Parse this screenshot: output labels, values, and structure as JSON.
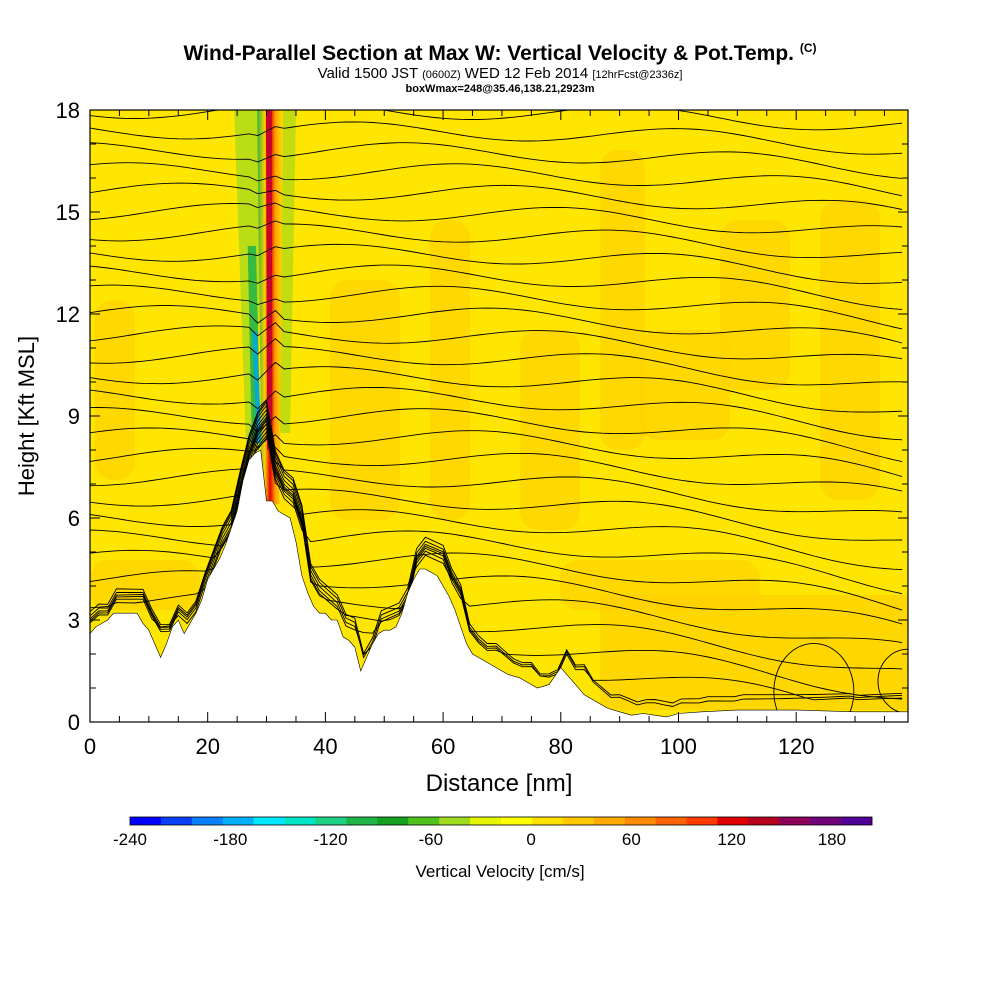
{
  "header": {
    "title": "Wind-Parallel Section at Max W: Vertical Velocity & Pot.Temp.",
    "copyright": "(C)",
    "valid_prefix": "Valid 1500 JST",
    "valid_z": "(0600Z)",
    "valid_date": "WED 12 Feb 2014",
    "forecast": "[12hrFcst@2336z]",
    "box_info": "boxWmax=248@35.46,138.21,2923m"
  },
  "colorbar": {
    "label": "Vertical Velocity [cm/s]",
    "ticks": [
      "-240",
      "-180",
      "-120",
      "-60",
      "0",
      "60",
      "120",
      "180"
    ],
    "colors": [
      "#0000ff",
      "#0a3ff5",
      "#0a80ff",
      "#00b0ff",
      "#00e8ff",
      "#00e6c4",
      "#1ed184",
      "#1eb446",
      "#16a020",
      "#50c21e",
      "#a0dc1e",
      "#e6f500",
      "#ffff00",
      "#ffe100",
      "#ffc800",
      "#ffaa00",
      "#ff8c00",
      "#ff6400",
      "#ff3c00",
      "#e10000",
      "#b4001e",
      "#8c005a",
      "#6e0078",
      "#500096"
    ]
  },
  "chart_data": {
    "type": "heatmap",
    "xlabel": "Distance [nm]",
    "ylabel": "Height [Kft MSL]",
    "xlim": [
      0,
      139
    ],
    "ylim": [
      0,
      18
    ],
    "xticks": [
      0,
      20,
      40,
      60,
      80,
      100,
      120
    ],
    "yticks": [
      0,
      3,
      6,
      9,
      12,
      15,
      18
    ],
    "terrain": [
      [
        0,
        2.6
      ],
      [
        1,
        2.8
      ],
      [
        3,
        3.0
      ],
      [
        4,
        3.2
      ],
      [
        8,
        3.2
      ],
      [
        9,
        2.9
      ],
      [
        10,
        2.7
      ],
      [
        11,
        2.3
      ],
      [
        12,
        1.9
      ],
      [
        13,
        2.3
      ],
      [
        14,
        2.8
      ],
      [
        15,
        3.0
      ],
      [
        16,
        2.6
      ],
      [
        17,
        2.9
      ],
      [
        18,
        3.2
      ],
      [
        19,
        3.6
      ],
      [
        20,
        4.2
      ],
      [
        21,
        4.5
      ],
      [
        22,
        4.8
      ],
      [
        23,
        5.2
      ],
      [
        24,
        5.7
      ],
      [
        25,
        6.2
      ],
      [
        26,
        7.1
      ],
      [
        27,
        7.7
      ],
      [
        28,
        7.9
      ],
      [
        29,
        8.0
      ],
      [
        30,
        6.5
      ],
      [
        31,
        6.5
      ],
      [
        32,
        6.2
      ],
      [
        34,
        6.0
      ],
      [
        35,
        5.3
      ],
      [
        36,
        4.3
      ],
      [
        37,
        3.8
      ],
      [
        38,
        3.4
      ],
      [
        39,
        3.2
      ],
      [
        40,
        3.2
      ],
      [
        41,
        3.0
      ],
      [
        42,
        3.0
      ],
      [
        43,
        2.5
      ],
      [
        44,
        2.4
      ],
      [
        45,
        2.2
      ],
      [
        46,
        1.5
      ],
      [
        47,
        1.9
      ],
      [
        48,
        2.3
      ],
      [
        49,
        2.6
      ],
      [
        50,
        2.7
      ],
      [
        51,
        2.7
      ],
      [
        52,
        2.8
      ],
      [
        53,
        3.2
      ],
      [
        54,
        3.8
      ],
      [
        55,
        4.2
      ],
      [
        56,
        4.5
      ],
      [
        57,
        4.5
      ],
      [
        58,
        4.4
      ],
      [
        59,
        4.3
      ],
      [
        60,
        4.0
      ],
      [
        61,
        3.7
      ],
      [
        62,
        3.3
      ],
      [
        63,
        2.8
      ],
      [
        64,
        2.3
      ],
      [
        65,
        2.0
      ],
      [
        67,
        1.8
      ],
      [
        69,
        1.6
      ],
      [
        71,
        1.4
      ],
      [
        73,
        1.3
      ],
      [
        75,
        1.1
      ],
      [
        76,
        1.0
      ],
      [
        78,
        1.1
      ],
      [
        80,
        1.6
      ],
      [
        82,
        1.2
      ],
      [
        84,
        0.8
      ],
      [
        86,
        0.6
      ],
      [
        88,
        0.4
      ],
      [
        90,
        0.3
      ],
      [
        92,
        0.2
      ],
      [
        94,
        0.25
      ],
      [
        96,
        0.2
      ],
      [
        98,
        0.15
      ],
      [
        100,
        0.25
      ],
      [
        104,
        0.3
      ],
      [
        110,
        0.35
      ],
      [
        120,
        0.35
      ],
      [
        130,
        0.3
      ],
      [
        139,
        0.3
      ]
    ],
    "updraft_core": {
      "x_range": [
        28,
        33
      ],
      "y_range": [
        7.8,
        18
      ],
      "w_max_cm_s": 248
    },
    "pot_temp_label": "Pot.Temp."
  }
}
